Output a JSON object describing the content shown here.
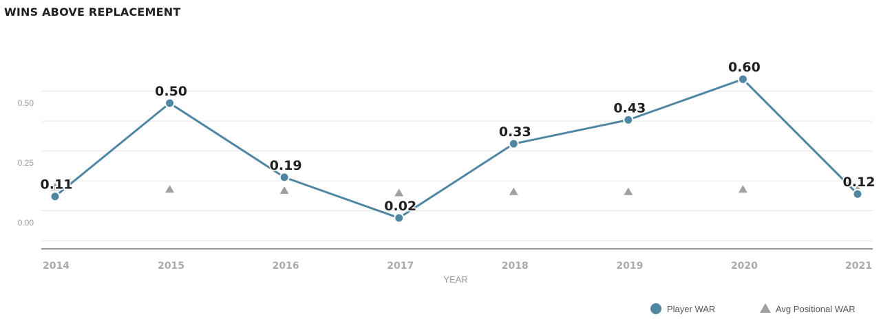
{
  "chart_data": {
    "type": "line",
    "title": "WINS ABOVE REPLACEMENT",
    "xlabel": "YEAR",
    "ylabel": "",
    "x": [
      "2014",
      "2015",
      "2016",
      "2017",
      "2018",
      "2019",
      "2020",
      "2021"
    ],
    "ylim": [
      -0.09,
      0.64
    ],
    "yticks": [
      "0.00",
      "0.25",
      "0.50"
    ],
    "grid": true,
    "legend_position": "bottom-right",
    "series": [
      {
        "name": "Player WAR",
        "marker": "circle",
        "color": "#4e86a4",
        "values": [
          0.11,
          0.5,
          0.19,
          0.02,
          0.33,
          0.43,
          0.6,
          0.12
        ],
        "labels": [
          "0.11",
          "0.50",
          "0.19",
          "0.02",
          "0.33",
          "0.43",
          "0.60",
          "0.12"
        ]
      },
      {
        "name": "Avg Positional WAR",
        "marker": "triangle",
        "color": "#a0a0a0",
        "values": [
          0.15,
          0.14,
          0.135,
          0.125,
          0.13,
          0.13,
          0.14,
          0.14
        ]
      }
    ]
  }
}
